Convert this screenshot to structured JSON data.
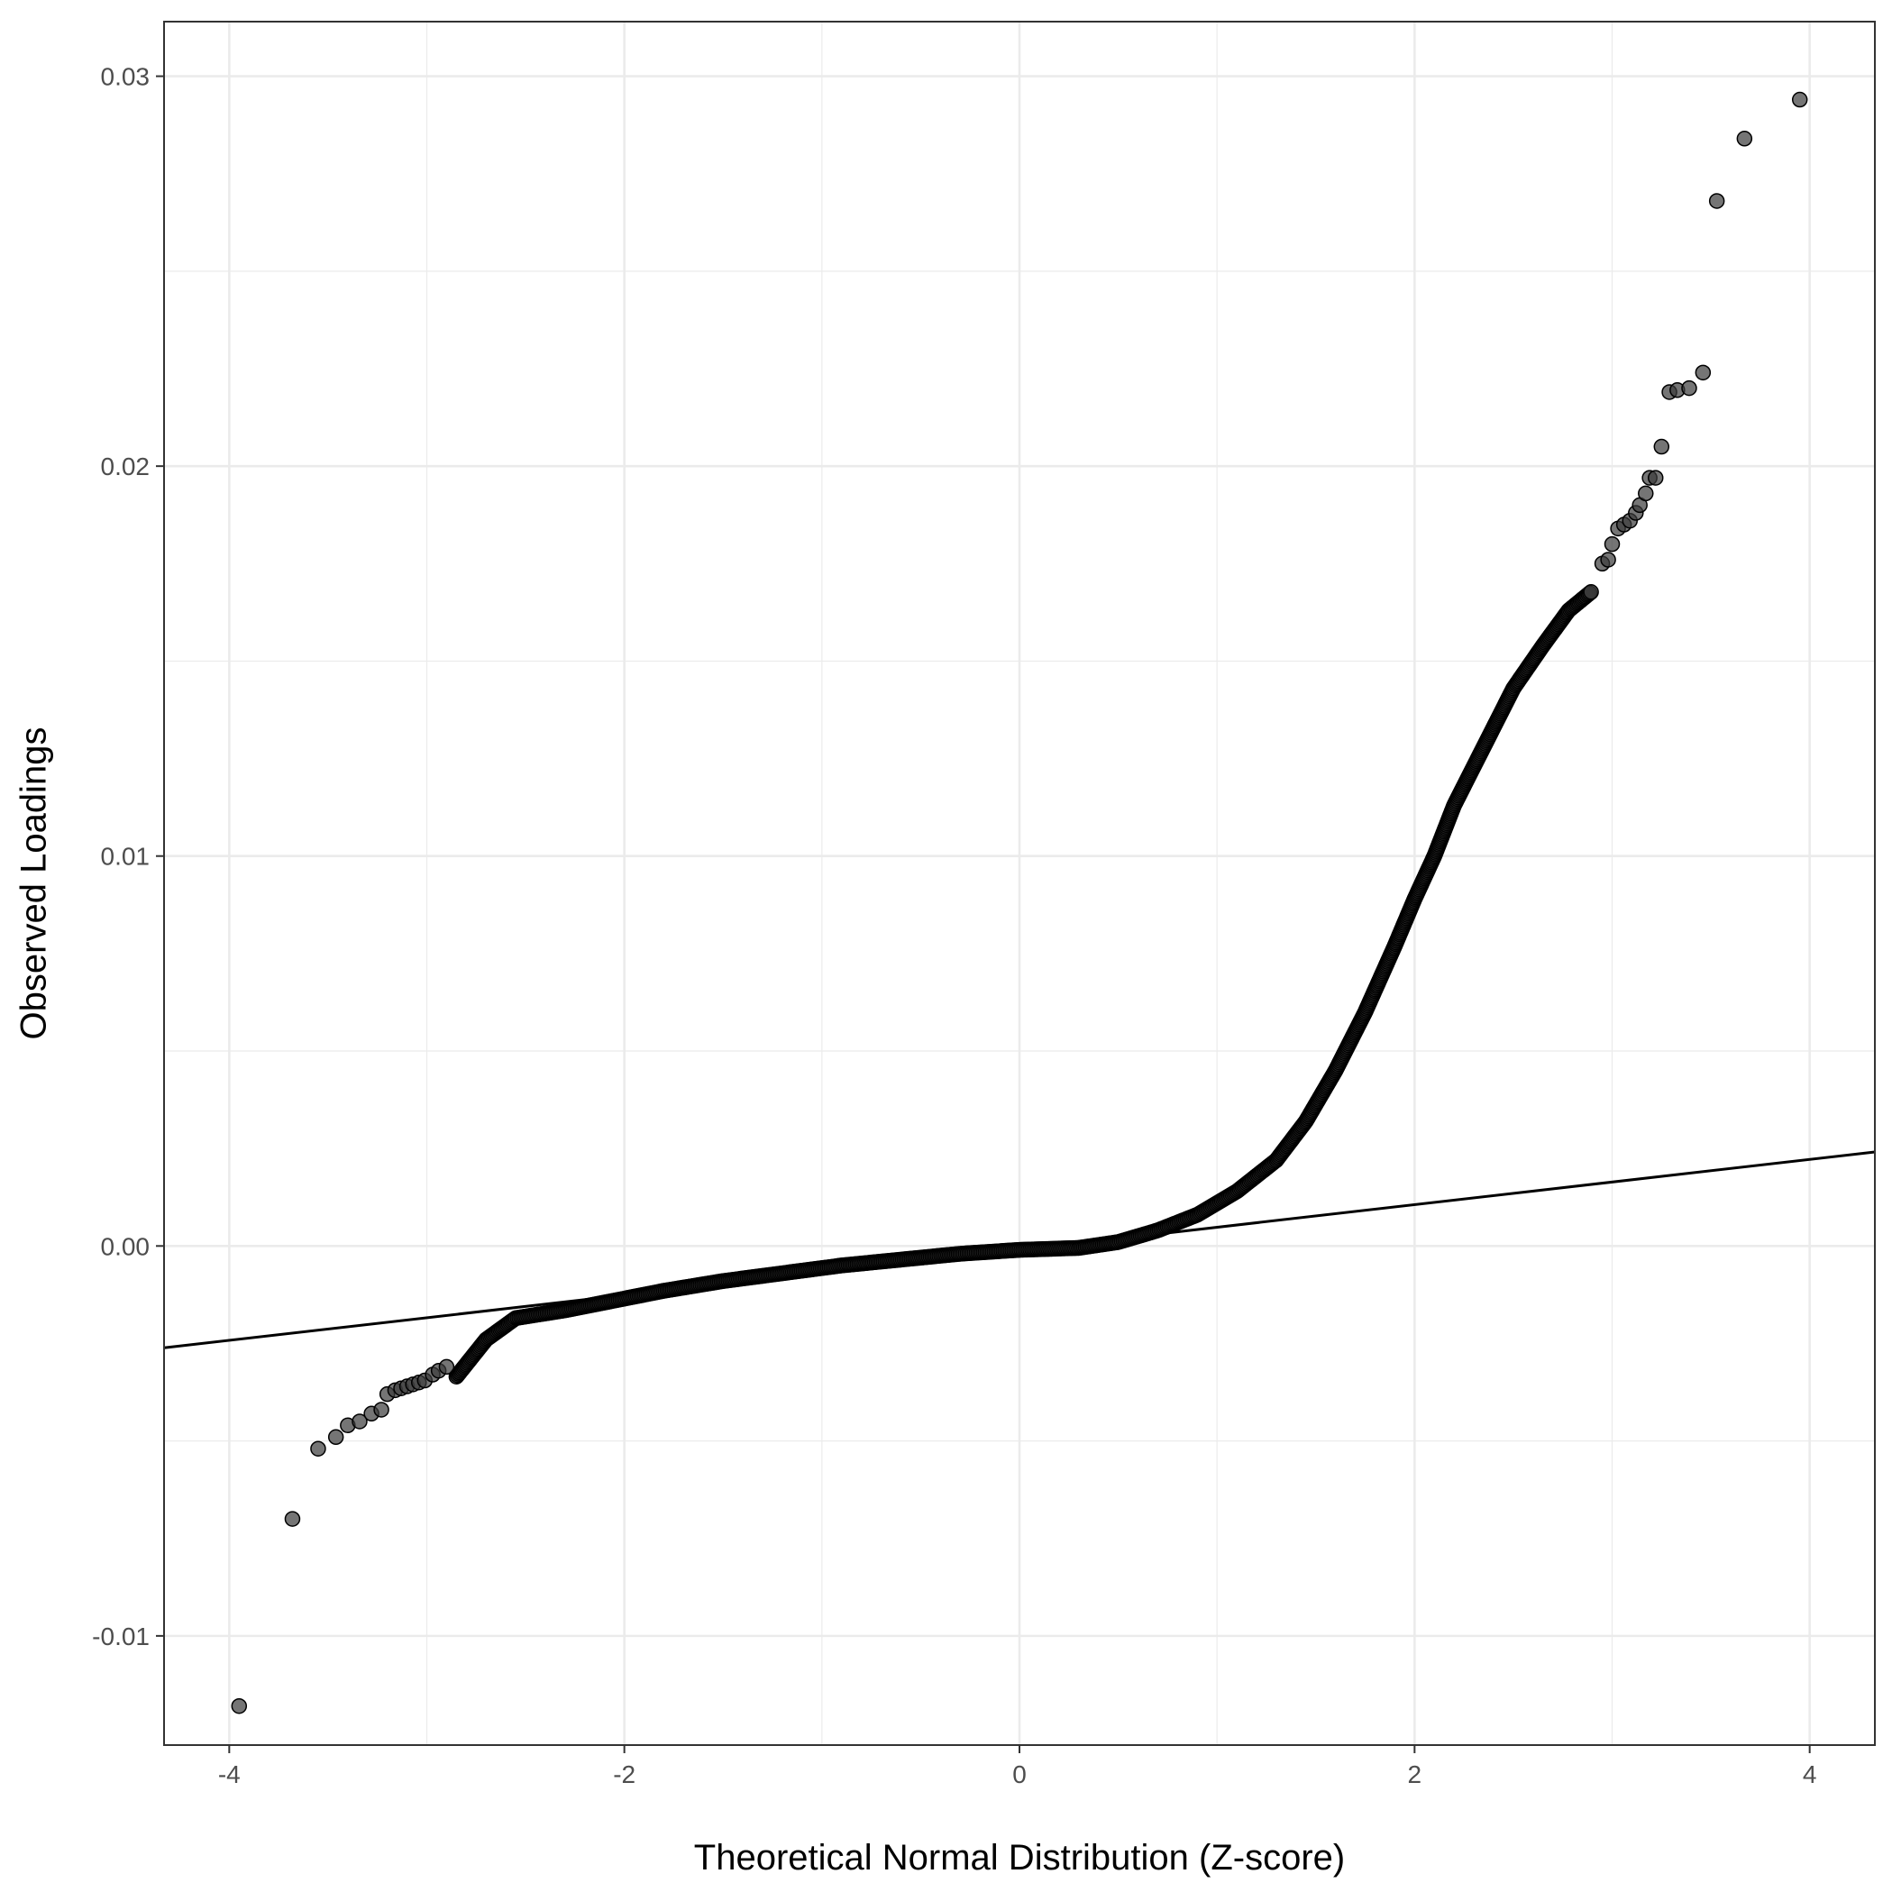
{
  "chart_data": {
    "type": "scatter",
    "title": "",
    "xlabel": "Theoretical Normal Distribution (Z-score)",
    "ylabel": "Observed Loadings",
    "xlim": [
      -4.33,
      4.33
    ],
    "ylim": [
      -0.0128,
      0.0314
    ],
    "x_ticks": [
      -4,
      -2,
      0,
      2,
      4
    ],
    "x_tick_labels": [
      "-4",
      "-2",
      "0",
      "2",
      "4"
    ],
    "y_ticks": [
      -0.01,
      0.0,
      0.01,
      0.02,
      0.03
    ],
    "y_tick_labels": [
      "-0.01",
      "0.00",
      "0.01",
      "0.02",
      "0.03"
    ],
    "grid": true,
    "legend": "none",
    "colors": {
      "points": "#3a3a3a",
      "line": "#000000",
      "grid": "#ebebeb",
      "panel_border": "#333333"
    },
    "reference_line": {
      "intercept": -0.0001,
      "slope": 0.00058,
      "x_range": [
        -4.33,
        4.33
      ]
    },
    "dense_curve": [
      [
        -2.85,
        -0.00335
      ],
      [
        -2.7,
        -0.0024
      ],
      [
        -2.55,
        -0.00185
      ],
      [
        -2.3,
        -0.00165
      ],
      [
        -2.1,
        -0.00145
      ],
      [
        -1.8,
        -0.00115
      ],
      [
        -1.5,
        -0.0009
      ],
      [
        -1.2,
        -0.0007
      ],
      [
        -0.9,
        -0.0005
      ],
      [
        -0.6,
        -0.00035
      ],
      [
        -0.3,
        -0.0002
      ],
      [
        0.0,
        -0.0001
      ],
      [
        0.3,
        -5e-05
      ],
      [
        0.5,
        0.0001
      ],
      [
        0.7,
        0.0004
      ],
      [
        0.9,
        0.0008
      ],
      [
        1.1,
        0.0014
      ],
      [
        1.3,
        0.0022
      ],
      [
        1.45,
        0.0032
      ],
      [
        1.6,
        0.0045
      ],
      [
        1.75,
        0.006
      ],
      [
        1.9,
        0.0077
      ],
      [
        2.0,
        0.0089
      ],
      [
        2.1,
        0.01
      ],
      [
        2.2,
        0.0113
      ],
      [
        2.35,
        0.0128
      ],
      [
        2.5,
        0.0143
      ],
      [
        2.65,
        0.0154
      ],
      [
        2.78,
        0.0163
      ],
      [
        2.9,
        0.0168
      ]
    ],
    "points": [
      [
        -3.95,
        -0.0118
      ],
      [
        -3.68,
        -0.007
      ],
      [
        -3.55,
        -0.0052
      ],
      [
        -3.46,
        -0.0049
      ],
      [
        -3.4,
        -0.0046
      ],
      [
        -3.34,
        -0.0045
      ],
      [
        -3.28,
        -0.0043
      ],
      [
        -3.23,
        -0.0042
      ],
      [
        -3.2,
        -0.0038
      ],
      [
        -3.16,
        -0.0037
      ],
      [
        -3.13,
        -0.00365
      ],
      [
        -3.1,
        -0.0036
      ],
      [
        -3.07,
        -0.00355
      ],
      [
        -3.04,
        -0.0035
      ],
      [
        -3.01,
        -0.00345
      ],
      [
        -2.97,
        -0.0033
      ],
      [
        -2.94,
        -0.0032
      ],
      [
        -2.9,
        -0.0031
      ],
      [
        2.95,
        0.0175
      ],
      [
        2.98,
        0.0176
      ],
      [
        3.0,
        0.018
      ],
      [
        3.03,
        0.0184
      ],
      [
        3.06,
        0.0185
      ],
      [
        3.09,
        0.0186
      ],
      [
        3.12,
        0.0188
      ],
      [
        3.14,
        0.019
      ],
      [
        3.17,
        0.0193
      ],
      [
        3.19,
        0.0197
      ],
      [
        3.22,
        0.0197
      ],
      [
        3.25,
        0.0205
      ],
      [
        3.29,
        0.0219
      ],
      [
        3.33,
        0.02195
      ],
      [
        3.39,
        0.022
      ],
      [
        3.46,
        0.0224
      ],
      [
        3.53,
        0.0268
      ],
      [
        3.67,
        0.0284
      ],
      [
        3.95,
        0.0294
      ]
    ]
  }
}
